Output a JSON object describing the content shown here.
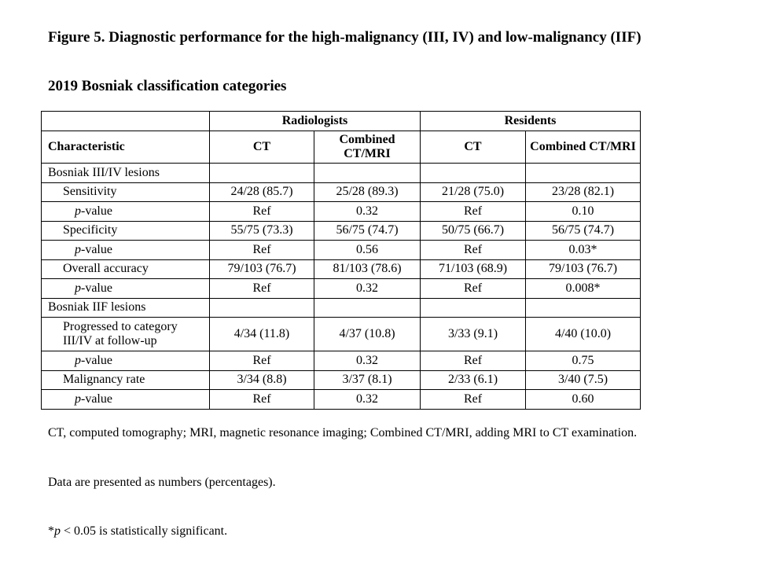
{
  "title_line1": "Figure 5. Diagnostic performance for the high-malignancy (III, IV) and low-malignancy (IIF)",
  "title_line2": "2019 Bosniak classification categories",
  "table": {
    "group_headers": [
      "Radiologists",
      "Residents"
    ],
    "characteristic_header": "Characteristic",
    "sub_headers": [
      "CT",
      "Combined CT/MRI",
      "CT",
      "Combined CT/MRI"
    ],
    "rows": [
      {
        "label": "Bosniak III/IV lesions",
        "indent": 0,
        "values": [
          "",
          "",
          "",
          ""
        ]
      },
      {
        "label": "Sensitivity",
        "indent": 1,
        "values": [
          "24/28 (85.7)",
          "25/28 (89.3)",
          "21/28 (75.0)",
          "23/28 (82.1)"
        ]
      },
      {
        "label_italic": "p",
        "label": "-value",
        "indent": 2,
        "values": [
          "Ref",
          "0.32",
          "Ref",
          "0.10"
        ]
      },
      {
        "label": "Specificity",
        "indent": 1,
        "values": [
          "55/75 (73.3)",
          "56/75 (74.7)",
          "50/75 (66.7)",
          "56/75 (74.7)"
        ]
      },
      {
        "label_italic": "p",
        "label": "-value",
        "indent": 2,
        "values": [
          "Ref",
          "0.56",
          "Ref",
          "0.03*"
        ]
      },
      {
        "label": "Overall accuracy",
        "indent": 1,
        "values": [
          "79/103 (76.7)",
          "81/103 (78.6)",
          "71/103 (68.9)",
          "79/103 (76.7)"
        ]
      },
      {
        "label_italic": "p",
        "label": "-value",
        "indent": 2,
        "values": [
          "Ref",
          "0.32",
          "Ref",
          "0.008*"
        ]
      },
      {
        "label": "Bosniak IIF lesions",
        "indent": 0,
        "values": [
          "",
          "",
          "",
          ""
        ]
      },
      {
        "label": "Progressed to category III/IV at follow-up",
        "indent": 1,
        "values": [
          "4/34 (11.8)",
          "4/37 (10.8)",
          "3/33 (9.1)",
          "4/40 (10.0)"
        ]
      },
      {
        "label_italic": "p",
        "label": "-value",
        "indent": 2,
        "values": [
          "Ref",
          "0.32",
          "Ref",
          "0.75"
        ]
      },
      {
        "label": "Malignancy rate",
        "indent": 1,
        "values": [
          "3/34 (8.8)",
          "3/37 (8.1)",
          "2/33 (6.1)",
          "3/40 (7.5)"
        ]
      },
      {
        "label_italic": "p",
        "label": "-value",
        "indent": 2,
        "values": [
          "Ref",
          "0.32",
          "Ref",
          "0.60"
        ]
      }
    ]
  },
  "notes": {
    "abbrev": "CT, computed tomography; MRI, magnetic resonance imaging; Combined CT/MRI, adding MRI to CT examination.",
    "data": "Data are presented as numbers (percentages).",
    "sig_italic": "p",
    "sig": " < 0.05 is statistically significant.",
    "sig_prefix": "*"
  }
}
